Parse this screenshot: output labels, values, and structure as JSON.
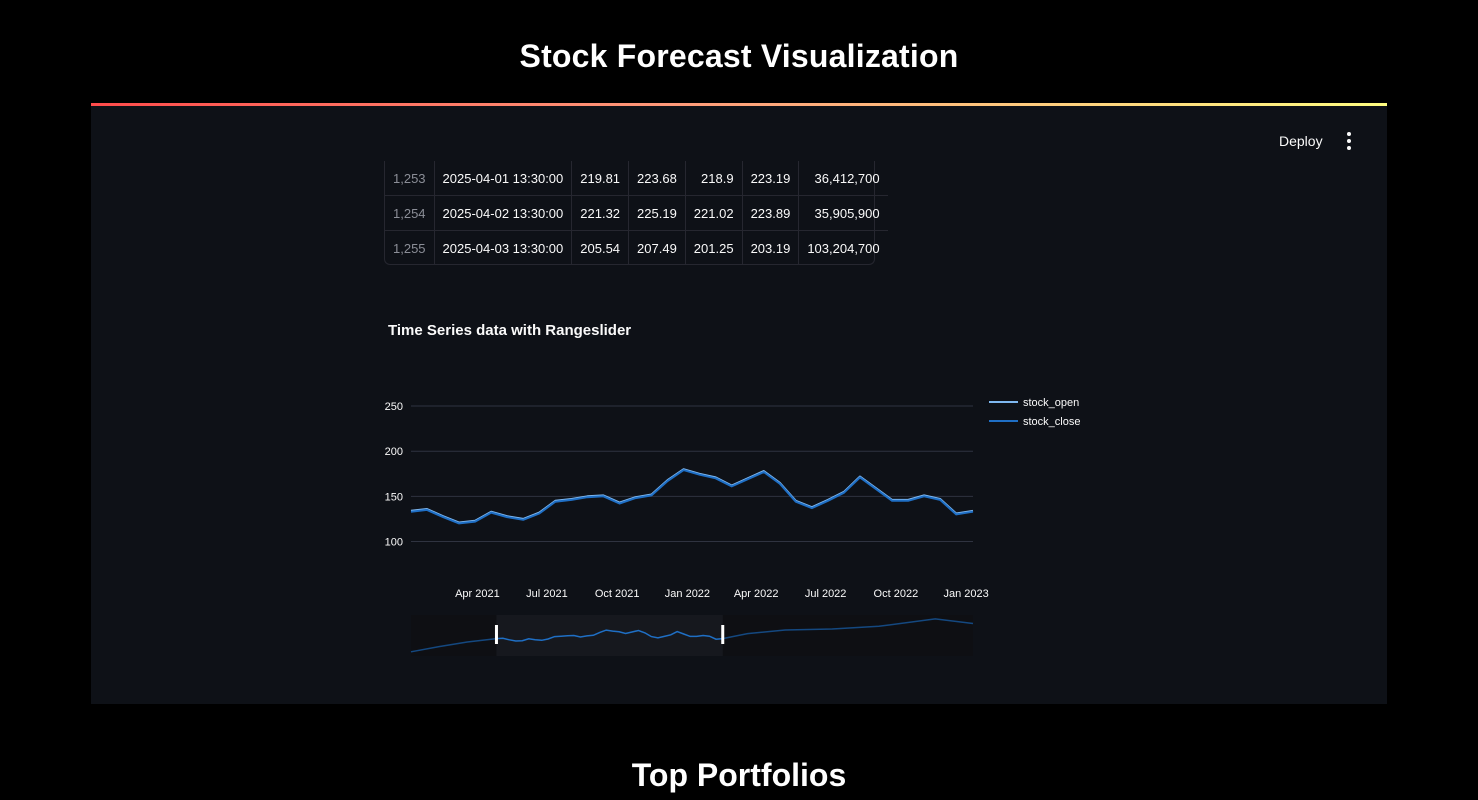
{
  "header": {
    "title": "Stock Forecast Visualization"
  },
  "toolbar": {
    "deploy_label": "Deploy"
  },
  "table": {
    "rows": [
      {
        "index": "1,253",
        "date": "2025-04-01 13:30:00",
        "open": "219.81",
        "high": "223.68",
        "low": "218.9",
        "close": "223.19",
        "volume": "36,412,700"
      },
      {
        "index": "1,254",
        "date": "2025-04-02 13:30:00",
        "open": "221.32",
        "high": "225.19",
        "low": "221.02",
        "close": "223.89",
        "volume": "35,905,900"
      },
      {
        "index": "1,255",
        "date": "2025-04-03 13:30:00",
        "open": "205.54",
        "high": "207.49",
        "low": "201.25",
        "close": "203.19",
        "volume": "103,204,700"
      }
    ]
  },
  "chart_data": {
    "type": "line",
    "title": "Time Series data with Rangeslider",
    "xlabel": "",
    "ylabel": "",
    "x_tick_labels": [
      "Apr 2021",
      "Jul 2021",
      "Oct 2021",
      "Jan 2022",
      "Apr 2022",
      "Jul 2022",
      "Oct 2022",
      "Jan 2023"
    ],
    "y_ticks": [
      100,
      150,
      200,
      250
    ],
    "xlim": [
      "2021-01-04",
      "2023-01-10"
    ],
    "ylim": [
      85,
      270
    ],
    "grid": true,
    "legend": "right",
    "rangeslider": true,
    "rangeslider_xlim": [
      "2020-04-01",
      "2025-04-03"
    ],
    "colors": {
      "stock_open": "#7fb8f0",
      "stock_close": "#1f6fc5"
    },
    "series": [
      {
        "name": "stock_open",
        "x": [
          "2021-01-04",
          "2021-01-25",
          "2021-02-15",
          "2021-03-08",
          "2021-03-29",
          "2021-04-19",
          "2021-05-10",
          "2021-05-31",
          "2021-06-21",
          "2021-07-12",
          "2021-08-02",
          "2021-08-23",
          "2021-09-13",
          "2021-10-04",
          "2021-10-25",
          "2021-11-15",
          "2021-12-06",
          "2021-12-27",
          "2022-01-17",
          "2022-02-07",
          "2022-02-28",
          "2022-03-21",
          "2022-04-11",
          "2022-05-02",
          "2022-05-23",
          "2022-06-13",
          "2022-07-04",
          "2022-07-25",
          "2022-08-15",
          "2022-09-05",
          "2022-09-26",
          "2022-10-17",
          "2022-11-07",
          "2022-11-28",
          "2022-12-19",
          "2023-01-10"
        ],
        "values": [
          134,
          136,
          128,
          121,
          123,
          133,
          128,
          125,
          132,
          145,
          147,
          150,
          151,
          143,
          149,
          152,
          168,
          180,
          175,
          171,
          162,
          170,
          178,
          165,
          145,
          138,
          146,
          155,
          172,
          159,
          146,
          146,
          151,
          147,
          131,
          134
        ]
      },
      {
        "name": "stock_close",
        "x": [
          "2021-01-04",
          "2021-01-25",
          "2021-02-15",
          "2021-03-08",
          "2021-03-29",
          "2021-04-19",
          "2021-05-10",
          "2021-05-31",
          "2021-06-21",
          "2021-07-12",
          "2021-08-02",
          "2021-08-23",
          "2021-09-13",
          "2021-10-04",
          "2021-10-25",
          "2021-11-15",
          "2021-12-06",
          "2021-12-27",
          "2022-01-17",
          "2022-02-07",
          "2022-02-28",
          "2022-03-21",
          "2022-04-11",
          "2022-05-02",
          "2022-05-23",
          "2022-06-13",
          "2022-07-04",
          "2022-07-25",
          "2022-08-15",
          "2022-09-05",
          "2022-09-26",
          "2022-10-17",
          "2022-11-07",
          "2022-11-28",
          "2022-12-19",
          "2023-01-10"
        ],
        "values": [
          133,
          135,
          127,
          120,
          122,
          132,
          127,
          124,
          131,
          144,
          146,
          149,
          150,
          142,
          148,
          151,
          167,
          179,
          174,
          170,
          161,
          169,
          177,
          164,
          144,
          137,
          145,
          154,
          171,
          158,
          145,
          145,
          150,
          146,
          130,
          133
        ]
      }
    ]
  },
  "sections": {
    "portfolios_title": "Top Portfolios"
  }
}
